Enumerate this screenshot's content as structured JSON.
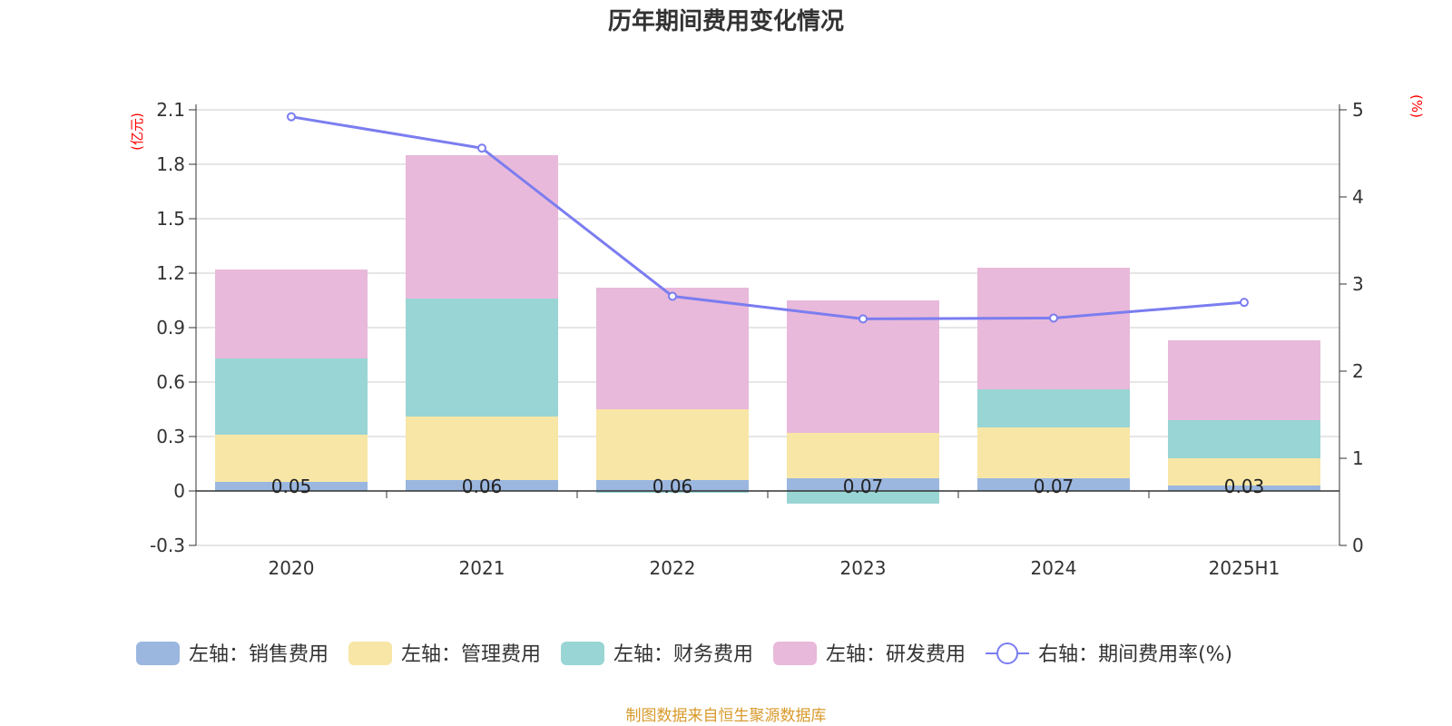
{
  "chart_data": {
    "type": "bar",
    "title": "历年期间费用变化情况",
    "categories": [
      "2020",
      "2021",
      "2022",
      "2023",
      "2024",
      "2025H1"
    ],
    "stacked": true,
    "left_axis": {
      "unit": "(亿元)",
      "ylim": [
        -0.3,
        2.1
      ],
      "ticks": [
        "2.1",
        "1.8",
        "1.5",
        "1.2",
        "0.9",
        "0.6",
        "0.3",
        "0",
        "-0.3"
      ]
    },
    "right_axis": {
      "unit": "(%)",
      "ylim": [
        0,
        5
      ],
      "ticks": [
        "5",
        "4",
        "3",
        "2",
        "1",
        "0"
      ]
    },
    "series": [
      {
        "name": "左轴：销售费用",
        "axis": "left",
        "color": "#9bb7e0",
        "values": [
          0.05,
          0.06,
          0.06,
          0.07,
          0.07,
          0.03
        ]
      },
      {
        "name": "左轴：管理费用",
        "axis": "left",
        "color": "#f8e6a6",
        "values": [
          0.26,
          0.35,
          0.39,
          0.25,
          0.28,
          0.15
        ]
      },
      {
        "name": "左轴：财务费用",
        "axis": "left",
        "color": "#99d5d4",
        "values": [
          0.42,
          0.65,
          -0.01,
          -0.07,
          0.21,
          0.21
        ]
      },
      {
        "name": "左轴：研发费用",
        "axis": "left",
        "color": "#e8b9da",
        "values": [
          0.49,
          0.79,
          0.67,
          0.73,
          0.67,
          0.44
        ]
      },
      {
        "name": "右轴：期间费用率(%)",
        "axis": "right",
        "type": "line",
        "color": "#7b7df0",
        "values": [
          4.92,
          4.56,
          2.86,
          2.6,
          2.61,
          2.79
        ]
      }
    ],
    "data_labels": [
      "0.05",
      "0.06",
      "0.06",
      "0.07",
      "0.07",
      "0.03"
    ],
    "grid": true,
    "legend": "bottom"
  },
  "source": "制图数据来自恒生聚源数据库"
}
